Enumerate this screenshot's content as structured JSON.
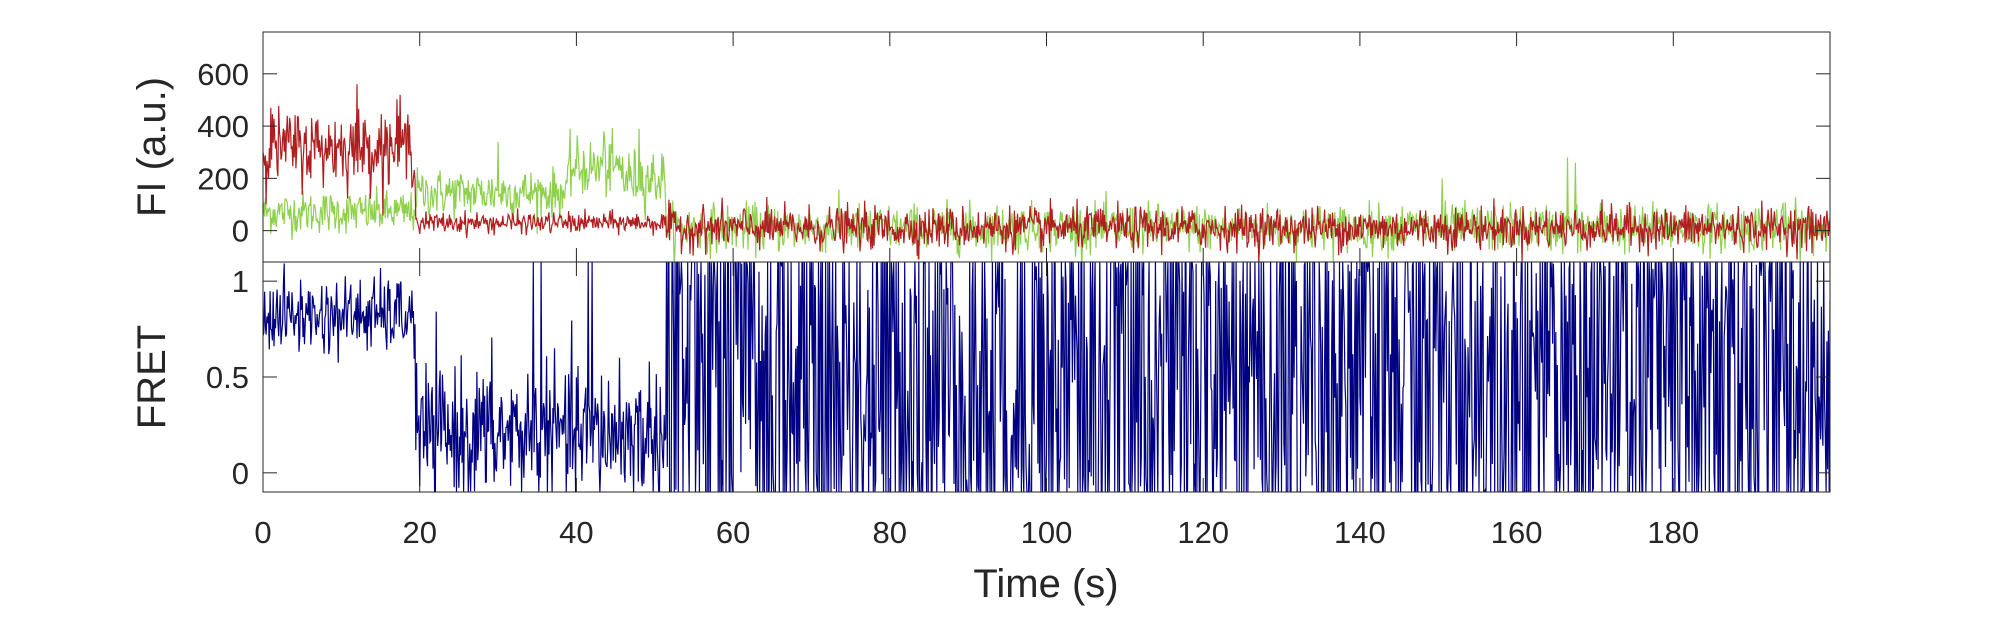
{
  "chart_data": [
    {
      "type": "line",
      "title": "",
      "xlabel": "",
      "ylabel": "FI (a.u.)",
      "xlim": [
        0,
        200
      ],
      "ylim": [
        -120,
        760
      ],
      "xticks": [
        0,
        20,
        40,
        60,
        80,
        100,
        120,
        140,
        160,
        180
      ],
      "yticks": [
        0,
        200,
        400,
        600
      ],
      "ytick_labels": [
        "0",
        "200",
        "400",
        "600"
      ],
      "grid": false,
      "legend": "none",
      "sample_interval_s": 0.1,
      "series": [
        {
          "color": "#8fd14f",
          "segments": [
            {
              "x": [
                0,
                19.5
              ],
              "mean": 70,
              "noise": 40
            },
            {
              "x": [
                19.5,
                39
              ],
              "mean": 145,
              "noise": 45
            },
            {
              "x": [
                39,
                46
              ],
              "mean": 240,
              "noise": 55
            },
            {
              "x": [
                46,
                51.5
              ],
              "mean": 200,
              "noise": 55
            },
            {
              "x": [
                51.5,
                200
              ],
              "mean": 10,
              "noise": 45
            }
          ],
          "peaks": [
            [
              30,
              340
            ],
            [
              43.5,
              380
            ],
            [
              48,
              390
            ],
            [
              150.5,
              200
            ],
            [
              166.5,
              280
            ],
            [
              167.5,
              260
            ]
          ]
        },
        {
          "color": "#b01f1f",
          "segments": [
            {
              "x": [
                0,
                19.5
              ],
              "mean": 320,
              "noise": 70
            },
            {
              "x": [
                19.5,
                51.5
              ],
              "mean": 30,
              "noise": 20
            },
            {
              "x": [
                51.5,
                200
              ],
              "mean": 10,
              "noise": 40
            }
          ],
          "peaks": [
            [
              1,
              470
            ],
            [
              12,
              560
            ],
            [
              17.5,
              520
            ]
          ]
        }
      ]
    },
    {
      "type": "line",
      "title": "",
      "xlabel": "Time (s)",
      "ylabel": "FRET",
      "xlim": [
        0,
        200
      ],
      "ylim": [
        -0.1,
        1.1
      ],
      "xticks": [
        0,
        20,
        40,
        60,
        80,
        100,
        120,
        140,
        160,
        180
      ],
      "xtick_labels": [
        "0",
        "20",
        "40",
        "60",
        "80",
        "100",
        "120",
        "140",
        "160",
        "180"
      ],
      "yticks": [
        0,
        0.5,
        1
      ],
      "ytick_labels": [
        "0",
        "0.5",
        "1"
      ],
      "grid": false,
      "legend": "none",
      "series": [
        {
          "color": "#000080",
          "clip": [
            -0.1,
            1.1
          ],
          "segments": [
            {
              "x": [
                0,
                19.5
              ],
              "mean": 0.82,
              "noise": 0.1
            },
            {
              "x": [
                19.5,
                51.5
              ],
              "mean": 0.2,
              "noise": 0.18
            },
            {
              "x": [
                51.5,
                200
              ],
              "mean": 0.5,
              "noise": 0.9
            }
          ],
          "peaks": [
            [
              34.5,
              1.1
            ],
            [
              35.5,
              1.1
            ],
            [
              41.5,
              1.1
            ],
            [
              42,
              1.1
            ],
            [
              45.5,
              0.6
            ]
          ]
        }
      ]
    }
  ]
}
